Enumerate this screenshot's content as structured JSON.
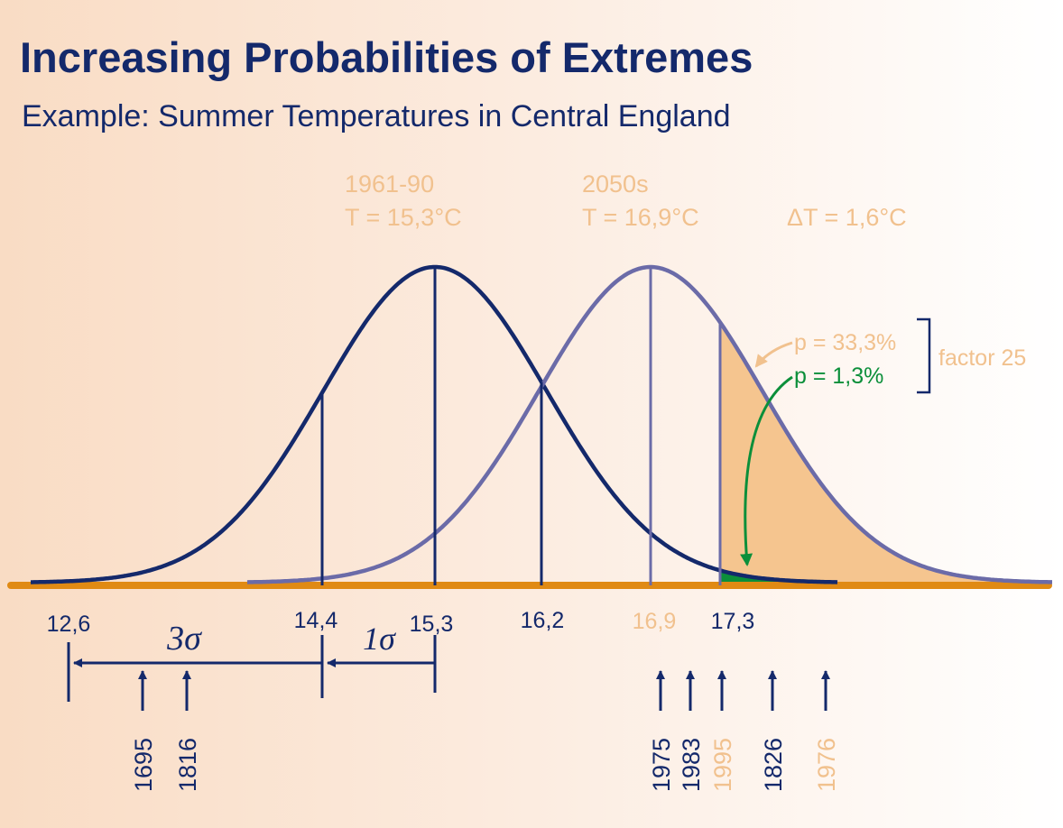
{
  "title": "Increasing Probabilities of Extremes",
  "subtitle": "Example: Summer Temperatures in Central England",
  "periods": {
    "baseline": {
      "label": "1961-90",
      "value": "T = 15,3°C"
    },
    "future": {
      "label": "2050s",
      "value": "T = 16,9°C"
    },
    "delta": "ΔT = 1,6°C"
  },
  "axis_ticks": {
    "t12_6": "12,6",
    "t14_4": "14,4",
    "t15_3": "15,3",
    "t16_2": "16,2",
    "t16_9": "16,9",
    "t17_3": "17,3"
  },
  "sigma": {
    "three": "3σ",
    "one": "1σ"
  },
  "probabilities": {
    "future": "p = 33,3%",
    "baseline": "p = 1,3%",
    "factor": "factor 25"
  },
  "years": {
    "y1695": "1695",
    "y1816": "1816",
    "y1975": "1975",
    "y1983": "1983",
    "y1995": "1995",
    "y1826": "1826",
    "y1976": "1976"
  },
  "colors": {
    "navy": "#14296b",
    "lavender": "#6b6ba8",
    "peach": "#f1c18e",
    "green": "#0b8f3a",
    "axis": "#e08a14"
  }
}
